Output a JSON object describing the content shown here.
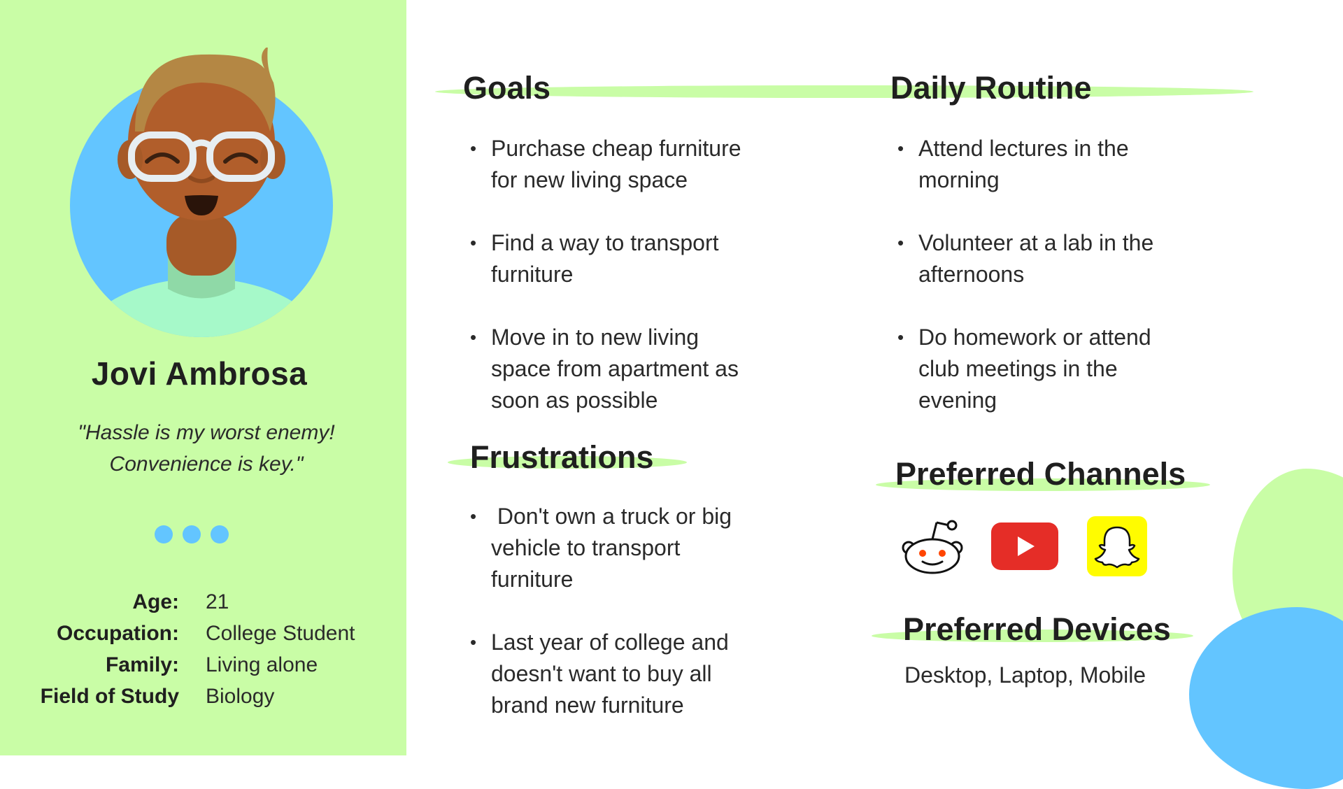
{
  "persona": {
    "name": "Jovi Ambrosa",
    "quote_line1": "\"Hassle is my worst enemy!",
    "quote_line2": "Convenience is key.\"",
    "avatar_icon": "person-with-glasses-avatar",
    "info": [
      {
        "key": "Age:",
        "value": "21"
      },
      {
        "key": "Occupation:",
        "value": "College Student"
      },
      {
        "key": "Family:",
        "value": "Living alone"
      },
      {
        "key": "Field of Study",
        "value": "Biology"
      }
    ]
  },
  "goals": {
    "title": "Goals",
    "items": [
      [
        "Purchase cheap furniture",
        "for new living space"
      ],
      [
        "Find a way to transport",
        "furniture"
      ],
      [
        "Move in to new living",
        "space from apartment as",
        "soon as possible"
      ]
    ]
  },
  "routine": {
    "title": "Daily Routine",
    "items": [
      [
        "Attend lectures in the",
        "morning"
      ],
      [
        "Volunteer at a lab in the",
        "afternoons"
      ],
      [
        "Do homework or attend",
        "club meetings in the",
        "evening"
      ]
    ]
  },
  "frustrations": {
    "title": "Frustrations",
    "items": [
      [
        " Don't own a truck or big",
        "vehicle to transport",
        "furniture"
      ],
      [
        "Last year of college and",
        "doesn't want to buy all",
        "brand new furniture"
      ]
    ]
  },
  "channels": {
    "title": "Preferred Channels",
    "icons": [
      "reddit-icon",
      "youtube-icon",
      "snapchat-icon"
    ]
  },
  "devices": {
    "title": "Preferred Devices",
    "text": "Desktop, Laptop, Mobile"
  },
  "colors": {
    "accent_green": "#c9fda6",
    "accent_blue": "#63c5ff",
    "text_dark": "#1f1f1f"
  }
}
